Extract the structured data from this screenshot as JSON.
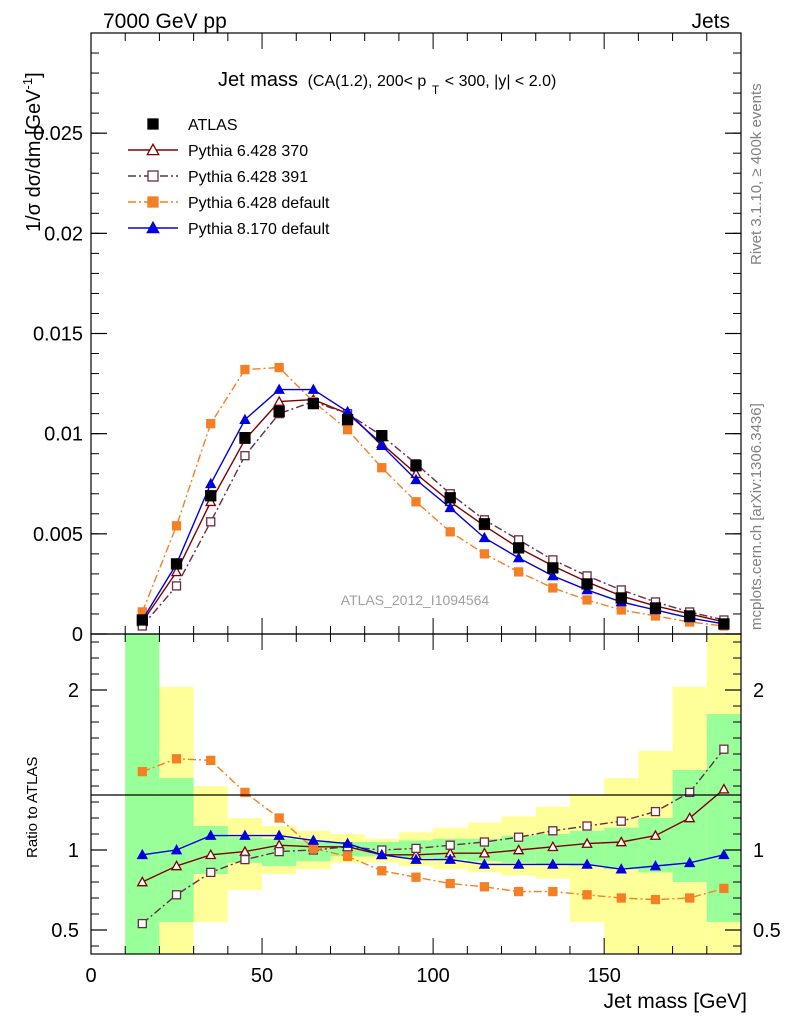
{
  "header": {
    "left": "7000 GeV pp",
    "right": "Jets"
  },
  "side_labels": {
    "rivet": "Rivet 3.1.10, ≥ 400k events",
    "mcplots": "mcplots.cern.ch [arXiv:1306.3436]"
  },
  "chart_data": [
    {
      "type": "line",
      "title_main": "Jet mass",
      "title_sub": "(CA(1.2), 200< p",
      "title_sub_sub": "T",
      "title_sub_tail": " < 300, |y| < 2.0)",
      "ylabel": "1/σ dσ/dm [GeV",
      "ylabel_sup": "-1",
      "ylabel_tail": "]",
      "watermark": "ATLAS_2012_I1094564",
      "xlim": [
        0,
        190
      ],
      "ylim": [
        0,
        0.03
      ],
      "yticks": [
        {
          "v": 0,
          "label": "0"
        },
        {
          "v": 0.005,
          "label": "0.005"
        },
        {
          "v": 0.01,
          "label": "0.01"
        },
        {
          "v": 0.015,
          "label": "0.015"
        },
        {
          "v": 0.02,
          "label": "0.02"
        },
        {
          "v": 0.025,
          "label": "0.025"
        }
      ],
      "x": [
        15,
        25,
        35,
        45,
        55,
        65,
        75,
        85,
        95,
        105,
        115,
        125,
        135,
        145,
        155,
        165,
        175,
        185
      ],
      "series": [
        {
          "name": "ATLAS",
          "color": "#000000",
          "marker": "filled-square",
          "line": "none",
          "values": [
            0.0007,
            0.0035,
            0.0069,
            0.0098,
            0.0111,
            0.0115,
            0.0107,
            0.0099,
            0.0084,
            0.0068,
            0.0055,
            0.0043,
            0.0033,
            0.0025,
            0.0018,
            0.0013,
            0.0009,
            0.0005
          ]
        },
        {
          "name": "Pythia 6.428 370",
          "color": "#800000",
          "marker": "open-triangle",
          "line": "solid",
          "values": [
            0.0006,
            0.0031,
            0.0066,
            0.0097,
            0.0116,
            0.0117,
            0.011,
            0.0095,
            0.008,
            0.0066,
            0.0054,
            0.0043,
            0.0034,
            0.0026,
            0.0019,
            0.0014,
            0.001,
            0.0006
          ]
        },
        {
          "name": "Pythia 6.428 391",
          "color": "#6b2a45",
          "marker": "open-square",
          "line": "dashdot",
          "values": [
            0.0004,
            0.0024,
            0.0056,
            0.0089,
            0.011,
            0.0116,
            0.011,
            0.0099,
            0.0085,
            0.007,
            0.0057,
            0.0047,
            0.0037,
            0.0029,
            0.0022,
            0.0016,
            0.0011,
            0.0007
          ]
        },
        {
          "name": "Pythia 6.428 default",
          "color": "#f57f25",
          "marker": "filled-square",
          "line": "dashdot",
          "values": [
            0.0011,
            0.0054,
            0.0105,
            0.0132,
            0.0133,
            0.0116,
            0.0102,
            0.0083,
            0.0066,
            0.0051,
            0.004,
            0.0031,
            0.0023,
            0.0017,
            0.0012,
            0.0009,
            0.0006,
            0.0004
          ]
        },
        {
          "name": "Pythia 8.170 default",
          "color": "#0000dd",
          "marker": "filled-triangle",
          "line": "solid",
          "values": [
            0.0007,
            0.0035,
            0.0075,
            0.0107,
            0.0122,
            0.0122,
            0.0111,
            0.0094,
            0.0077,
            0.0063,
            0.0048,
            0.0038,
            0.0029,
            0.0022,
            0.0016,
            0.0012,
            0.0008,
            0.0005
          ]
        }
      ]
    },
    {
      "type": "line",
      "ylabel": "Ratio to ATLAS",
      "xlabel": "Jet mass [GeV]",
      "xlim": [
        0,
        190
      ],
      "ylim": [
        0.35,
        2.35
      ],
      "xticks": [
        {
          "v": 0,
          "label": "0"
        },
        {
          "v": 50,
          "label": "50"
        },
        {
          "v": 100,
          "label": "100"
        },
        {
          "v": 150,
          "label": "150"
        }
      ],
      "yticks": [
        {
          "v": 0.5,
          "label": "0.5"
        },
        {
          "v": 1,
          "label": "1"
        },
        {
          "v": 2,
          "label": "2"
        }
      ],
      "reference": 1,
      "bin_edges": [
        10,
        20,
        30,
        40,
        50,
        60,
        70,
        80,
        90,
        100,
        110,
        120,
        130,
        140,
        150,
        160,
        170,
        180,
        190
      ],
      "band_inner": {
        "color": "#99ff99",
        "lo": [
          0.35,
          0.55,
          0.85,
          0.92,
          0.9,
          0.93,
          0.96,
          0.96,
          0.95,
          0.94,
          0.93,
          0.92,
          0.91,
          0.9,
          0.88,
          0.86,
          0.8,
          0.55
        ],
        "hi": [
          2.35,
          1.45,
          1.15,
          1.08,
          1.07,
          1.06,
          1.05,
          1.05,
          1.06,
          1.07,
          1.07,
          1.09,
          1.1,
          1.12,
          1.14,
          1.2,
          1.5,
          1.85
        ]
      },
      "band_outer": {
        "color": "#ffff99",
        "lo": [
          0.35,
          0.35,
          0.55,
          0.75,
          0.85,
          0.88,
          0.92,
          0.92,
          0.9,
          0.88,
          0.86,
          0.84,
          0.82,
          0.55,
          0.35,
          0.35,
          0.35,
          0.35
        ],
        "hi": [
          2.35,
          2.02,
          1.4,
          1.2,
          1.15,
          1.12,
          1.1,
          1.07,
          1.11,
          1.14,
          1.17,
          1.21,
          1.27,
          1.35,
          1.45,
          1.62,
          2.02,
          2.35
        ]
      },
      "x": [
        15,
        25,
        35,
        45,
        55,
        65,
        75,
        85,
        95,
        105,
        115,
        125,
        135,
        145,
        155,
        165,
        175,
        185
      ],
      "series": [
        {
          "name": "Pythia 6.428 370",
          "color": "#800000",
          "marker": "open-triangle",
          "line": "solid",
          "values": [
            0.8,
            0.9,
            0.97,
            0.99,
            1.03,
            1.02,
            1.02,
            0.97,
            0.97,
            0.98,
            0.98,
            1.0,
            1.02,
            1.04,
            1.05,
            1.09,
            1.2,
            1.38
          ]
        },
        {
          "name": "Pythia 6.428 391",
          "color": "#6b2a45",
          "marker": "open-square",
          "line": "dashdot",
          "values": [
            0.54,
            0.72,
            0.86,
            0.94,
            0.99,
            1.0,
            1.02,
            1.0,
            1.01,
            1.03,
            1.05,
            1.08,
            1.12,
            1.15,
            1.18,
            1.24,
            1.36,
            1.63
          ]
        },
        {
          "name": "Pythia 6.428 default",
          "color": "#f57f25",
          "marker": "filled-square",
          "line": "dashdot",
          "values": [
            1.49,
            1.57,
            1.56,
            1.36,
            1.2,
            1.01,
            0.96,
            0.87,
            0.83,
            0.79,
            0.77,
            0.74,
            0.74,
            0.72,
            0.7,
            0.69,
            0.7,
            0.76
          ]
        },
        {
          "name": "Pythia 8.170 default",
          "color": "#0000dd",
          "marker": "filled-triangle",
          "line": "solid",
          "values": [
            0.97,
            1.0,
            1.09,
            1.09,
            1.09,
            1.06,
            1.04,
            0.97,
            0.94,
            0.94,
            0.91,
            0.91,
            0.91,
            0.91,
            0.88,
            0.9,
            0.92,
            0.97
          ]
        }
      ]
    }
  ]
}
